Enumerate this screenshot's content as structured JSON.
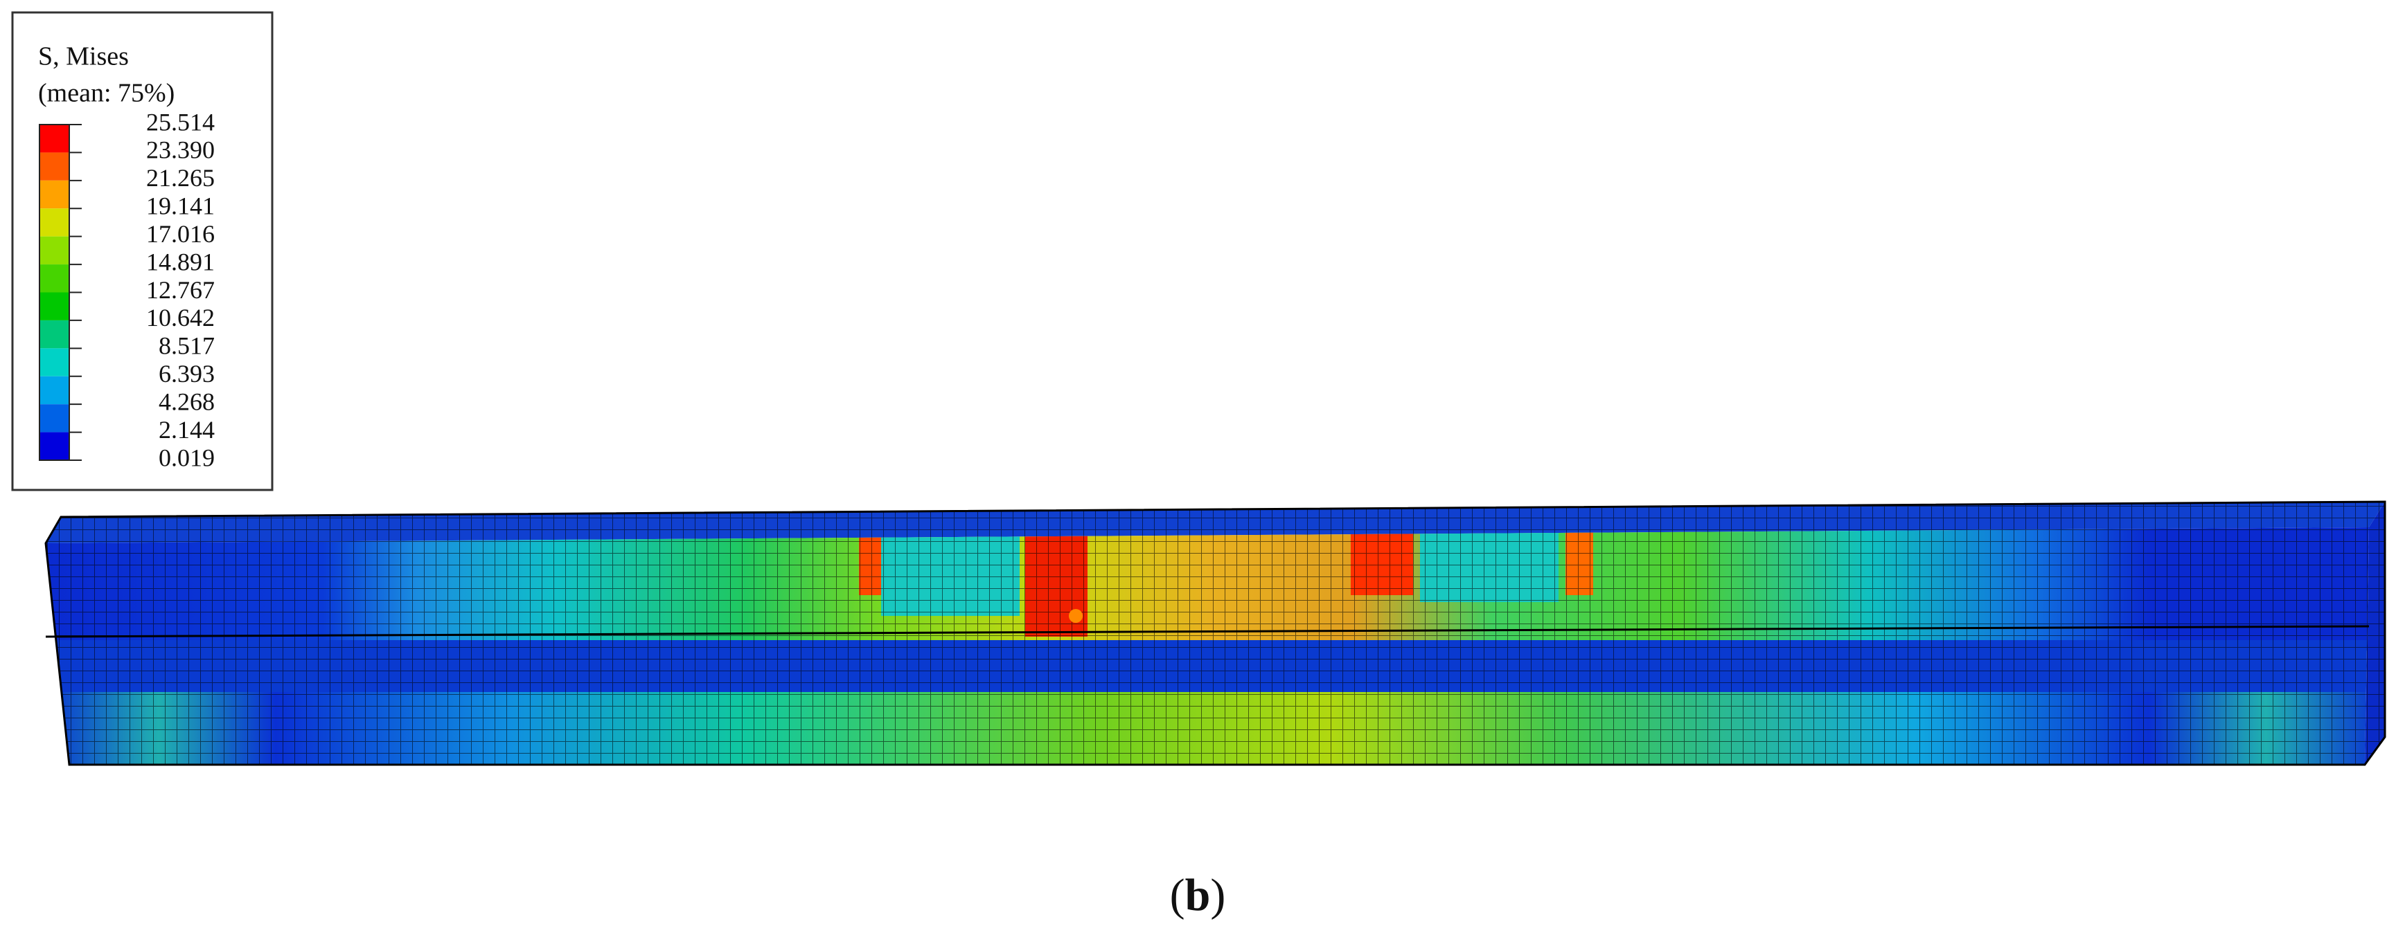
{
  "legend": {
    "title": "S, Mises",
    "subtitle": "(mean: 75%)",
    "levels": [
      "25.514",
      "23.390",
      "21.265",
      "19.141",
      "17.016",
      "14.891",
      "12.767",
      "10.642",
      "8.517",
      "6.393",
      "4.268",
      "2.144",
      "0.019"
    ],
    "colors": [
      "#ff0000",
      "#ff5a00",
      "#ffa200",
      "#d4e000",
      "#8ee000",
      "#46d400",
      "#00c800",
      "#00c87a",
      "#00d2c6",
      "#00a6ea",
      "#0062e6",
      "#0000de"
    ]
  },
  "caption": [
    "(",
    "b",
    ")"
  ]
}
